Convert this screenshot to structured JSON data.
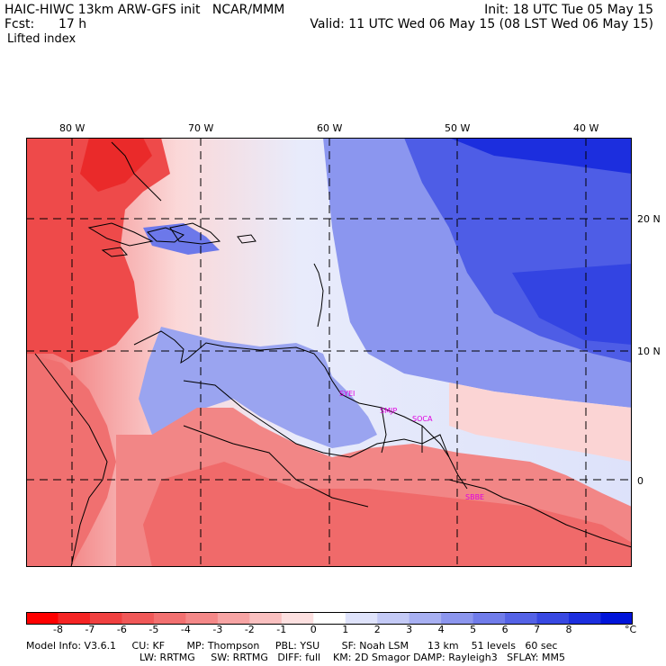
{
  "header": {
    "model_line": "HAIC-HIWC 13km ARW-GFS init   NCAR/MMM",
    "fcst_label": "Fcst:",
    "fcst_value": "17 h",
    "field_name": "Lifted index",
    "init_time": "Init: 18 UTC Tue 05 May 15",
    "valid_time": "Valid: 11 UTC Wed 06 May 15 (08 LST Wed 06 May 15)"
  },
  "map": {
    "longitude_labels": [
      "80 W",
      "70 W",
      "60 W",
      "50 W",
      "40 W"
    ],
    "latitude_labels": [
      "20 N",
      "10 N",
      "0"
    ],
    "stations": [
      "SYEI",
      "SMJP",
      "SOCA",
      "SBBE"
    ],
    "field_colors": {
      "strong_negative": "#ee2a2a",
      "negative": "#f47474",
      "weak_negative": "#fbd0d0",
      "neutral": "#f4f4fc",
      "weak_positive": "#bcc4f4",
      "positive": "#7886ee",
      "strong_positive": "#2a3ce8"
    }
  },
  "colorbar": {
    "unit": "°C",
    "ticks": [
      "-8",
      "-7",
      "-6",
      "-5",
      "-4",
      "-3",
      "-2",
      "-1",
      "0",
      "1",
      "2",
      "3",
      "4",
      "5",
      "6",
      "7",
      "8"
    ],
    "colors": [
      "#ff0000",
      "#f52424",
      "#f04040",
      "#f05858",
      "#f27070",
      "#f48888",
      "#f7a4a4",
      "#fac0c0",
      "#fde0e0",
      "#ffffff",
      "#dfe3fb",
      "#c4caf6",
      "#a8b0f2",
      "#8c96ee",
      "#707cea",
      "#5462e6",
      "#3848e2",
      "#1c2ede",
      "#0014da"
    ]
  },
  "model_info": {
    "line1": "Model Info: V3.6.1     CU: KF       MP: Thompson     PBL: YSU       SF: Noah LSM      13 km    51 levels   60 sec",
    "line2": "LW: RRTMG     SW: RRTMG   DIFF: full    KM: 2D Smagor DAMP: Rayleigh3   SFLAY: MM5"
  }
}
